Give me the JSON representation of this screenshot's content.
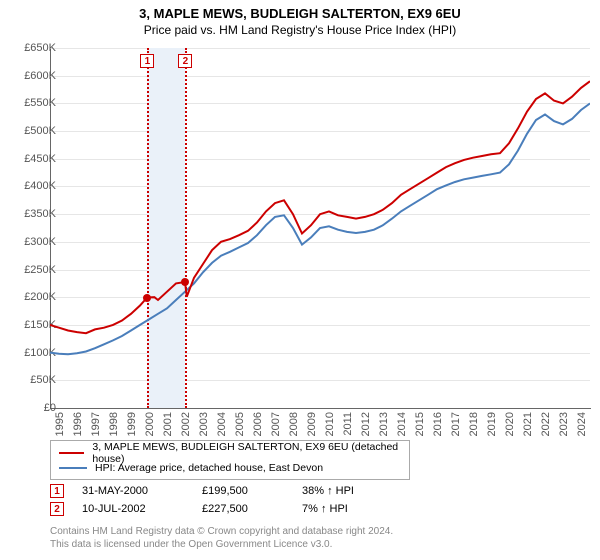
{
  "title": "3, MAPLE MEWS, BUDLEIGH SALTERTON, EX9 6EU",
  "subtitle": "Price paid vs. HM Land Registry's House Price Index (HPI)",
  "chart": {
    "type": "line",
    "x_start_year": 1995,
    "x_end_year": 2025,
    "ylim": [
      0,
      650000
    ],
    "ytick_step": 50000,
    "ytick_labels": [
      "£0",
      "£50K",
      "£100K",
      "£150K",
      "£200K",
      "£250K",
      "£300K",
      "£350K",
      "£400K",
      "£450K",
      "£500K",
      "£550K",
      "£600K",
      "£650K"
    ],
    "xtick_years": [
      1995,
      1996,
      1997,
      1998,
      1999,
      2000,
      2001,
      2002,
      2003,
      2004,
      2005,
      2006,
      2007,
      2008,
      2009,
      2010,
      2011,
      2012,
      2013,
      2014,
      2015,
      2016,
      2017,
      2018,
      2019,
      2020,
      2021,
      2022,
      2023,
      2024
    ],
    "background_color": "#ffffff",
    "grid_color": "#e6e6e6",
    "series": [
      {
        "name": "price_paid",
        "color": "#cc0000",
        "width": 2,
        "points": [
          [
            1995.0,
            150000
          ],
          [
            1995.5,
            145000
          ],
          [
            1996.0,
            140000
          ],
          [
            1996.5,
            137000
          ],
          [
            1997.0,
            135000
          ],
          [
            1997.5,
            142000
          ],
          [
            1998.0,
            145000
          ],
          [
            1998.5,
            150000
          ],
          [
            1999.0,
            158000
          ],
          [
            1999.5,
            170000
          ],
          [
            2000.0,
            185000
          ],
          [
            2000.4,
            199500
          ],
          [
            2000.8,
            200000
          ],
          [
            2001.0,
            195000
          ],
          [
            2001.5,
            210000
          ],
          [
            2002.0,
            225000
          ],
          [
            2002.5,
            227500
          ],
          [
            2002.6,
            201000
          ],
          [
            2003.0,
            235000
          ],
          [
            2003.5,
            260000
          ],
          [
            2004.0,
            285000
          ],
          [
            2004.5,
            300000
          ],
          [
            2005.0,
            305000
          ],
          [
            2005.5,
            312000
          ],
          [
            2006.0,
            320000
          ],
          [
            2006.5,
            335000
          ],
          [
            2007.0,
            355000
          ],
          [
            2007.5,
            370000
          ],
          [
            2008.0,
            375000
          ],
          [
            2008.5,
            350000
          ],
          [
            2009.0,
            315000
          ],
          [
            2009.5,
            330000
          ],
          [
            2010.0,
            350000
          ],
          [
            2010.5,
            355000
          ],
          [
            2011.0,
            348000
          ],
          [
            2011.5,
            345000
          ],
          [
            2012.0,
            342000
          ],
          [
            2012.5,
            345000
          ],
          [
            2013.0,
            350000
          ],
          [
            2013.5,
            358000
          ],
          [
            2014.0,
            370000
          ],
          [
            2014.5,
            385000
          ],
          [
            2015.0,
            395000
          ],
          [
            2015.5,
            405000
          ],
          [
            2016.0,
            415000
          ],
          [
            2016.5,
            425000
          ],
          [
            2017.0,
            435000
          ],
          [
            2017.5,
            442000
          ],
          [
            2018.0,
            448000
          ],
          [
            2018.5,
            452000
          ],
          [
            2019.0,
            455000
          ],
          [
            2019.5,
            458000
          ],
          [
            2020.0,
            460000
          ],
          [
            2020.5,
            478000
          ],
          [
            2021.0,
            505000
          ],
          [
            2021.5,
            535000
          ],
          [
            2022.0,
            558000
          ],
          [
            2022.5,
            568000
          ],
          [
            2023.0,
            555000
          ],
          [
            2023.5,
            550000
          ],
          [
            2024.0,
            562000
          ],
          [
            2024.5,
            578000
          ],
          [
            2025.0,
            590000
          ]
        ]
      },
      {
        "name": "hpi",
        "color": "#4a7ebb",
        "width": 2,
        "points": [
          [
            1995.0,
            100000
          ],
          [
            1995.5,
            98000
          ],
          [
            1996.0,
            97000
          ],
          [
            1996.5,
            99000
          ],
          [
            1997.0,
            102000
          ],
          [
            1997.5,
            108000
          ],
          [
            1998.0,
            115000
          ],
          [
            1998.5,
            122000
          ],
          [
            1999.0,
            130000
          ],
          [
            1999.5,
            140000
          ],
          [
            2000.0,
            150000
          ],
          [
            2000.5,
            160000
          ],
          [
            2001.0,
            170000
          ],
          [
            2001.5,
            180000
          ],
          [
            2002.0,
            195000
          ],
          [
            2002.5,
            210000
          ],
          [
            2003.0,
            225000
          ],
          [
            2003.5,
            245000
          ],
          [
            2004.0,
            262000
          ],
          [
            2004.5,
            275000
          ],
          [
            2005.0,
            282000
          ],
          [
            2005.5,
            290000
          ],
          [
            2006.0,
            298000
          ],
          [
            2006.5,
            312000
          ],
          [
            2007.0,
            330000
          ],
          [
            2007.5,
            345000
          ],
          [
            2008.0,
            348000
          ],
          [
            2008.5,
            325000
          ],
          [
            2009.0,
            295000
          ],
          [
            2009.5,
            308000
          ],
          [
            2010.0,
            325000
          ],
          [
            2010.5,
            328000
          ],
          [
            2011.0,
            322000
          ],
          [
            2011.5,
            318000
          ],
          [
            2012.0,
            316000
          ],
          [
            2012.5,
            318000
          ],
          [
            2013.0,
            322000
          ],
          [
            2013.5,
            330000
          ],
          [
            2014.0,
            342000
          ],
          [
            2014.5,
            355000
          ],
          [
            2015.0,
            365000
          ],
          [
            2015.5,
            375000
          ],
          [
            2016.0,
            385000
          ],
          [
            2016.5,
            395000
          ],
          [
            2017.0,
            402000
          ],
          [
            2017.5,
            408000
          ],
          [
            2018.0,
            413000
          ],
          [
            2018.5,
            416000
          ],
          [
            2019.0,
            419000
          ],
          [
            2019.5,
            422000
          ],
          [
            2020.0,
            425000
          ],
          [
            2020.5,
            440000
          ],
          [
            2021.0,
            465000
          ],
          [
            2021.5,
            495000
          ],
          [
            2022.0,
            520000
          ],
          [
            2022.5,
            530000
          ],
          [
            2023.0,
            518000
          ],
          [
            2023.5,
            512000
          ],
          [
            2024.0,
            522000
          ],
          [
            2024.5,
            538000
          ],
          [
            2025.0,
            550000
          ]
        ]
      }
    ],
    "transactions": [
      {
        "n": "1",
        "year": 2000.41,
        "price": 199500,
        "date": "31-MAY-2000",
        "price_label": "£199,500",
        "delta": "38% ↑ HPI"
      },
      {
        "n": "2",
        "year": 2002.52,
        "price": 227500,
        "date": "10-JUL-2002",
        "price_label": "£227,500",
        "delta": "7% ↑ HPI"
      }
    ],
    "band": {
      "from_year": 2000.41,
      "to_year": 2002.52,
      "color": "#eaf1f9"
    }
  },
  "legend": {
    "s1": {
      "label": "3, MAPLE MEWS, BUDLEIGH SALTERTON, EX9 6EU (detached house)",
      "color": "#cc0000"
    },
    "s2": {
      "label": "HPI: Average price, detached house, East Devon",
      "color": "#4a7ebb"
    }
  },
  "footnote": {
    "l1": "Contains HM Land Registry data © Crown copyright and database right 2024.",
    "l2": "This data is licensed under the Open Government Licence v3.0."
  }
}
